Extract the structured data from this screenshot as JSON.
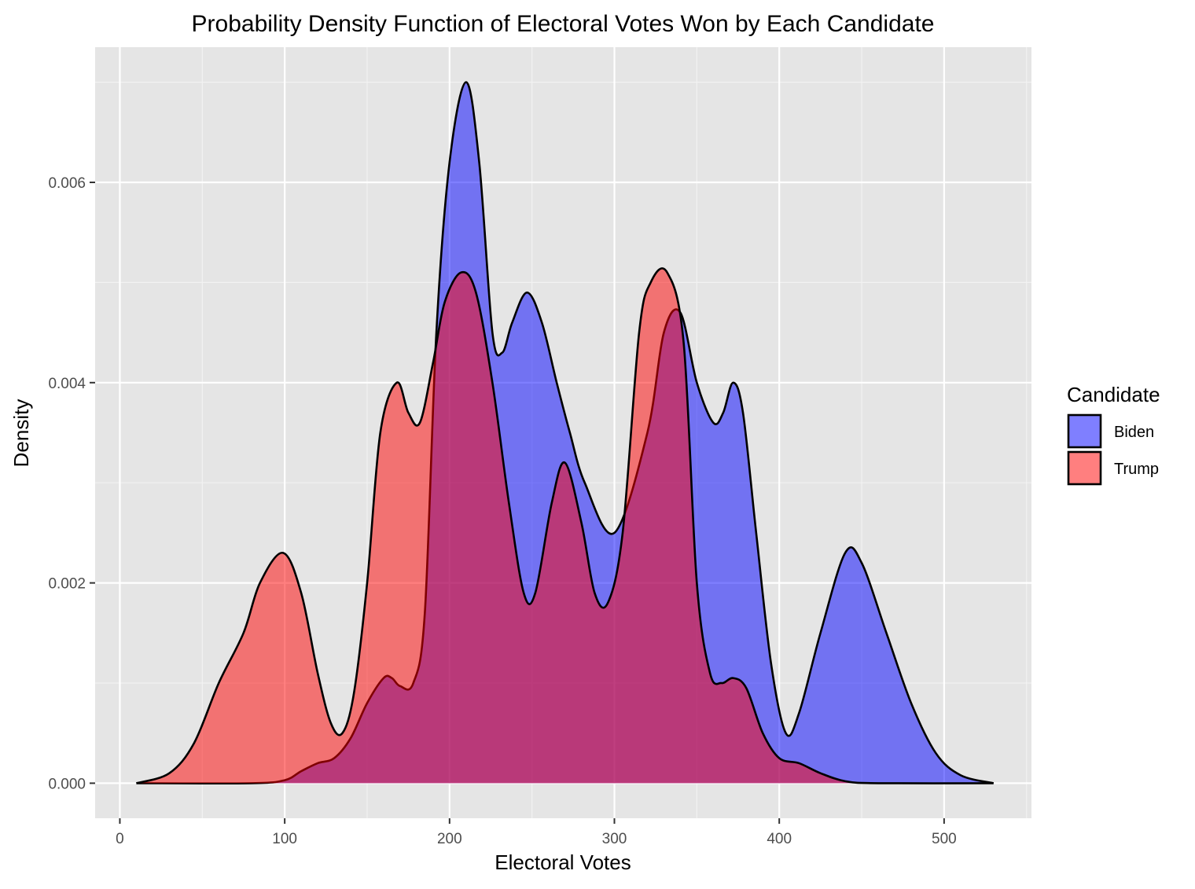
{
  "chart_data": {
    "type": "area",
    "title": "Probability Density Function of Electoral Votes Won by Each Candidate",
    "xlabel": "Electoral Votes",
    "ylabel": "Density",
    "xlim": [
      -15,
      553
    ],
    "ylim": [
      -0.00035,
      0.00735
    ],
    "x_ticks": [
      0,
      100,
      200,
      300,
      400,
      500
    ],
    "x_tick_labels": [
      "0",
      "100",
      "200",
      "300",
      "400",
      "500"
    ],
    "y_ticks": [
      0,
      0.002,
      0.004,
      0.006
    ],
    "y_tick_labels": [
      "0.000",
      "0.002",
      "0.004",
      "0.006"
    ],
    "grid": true,
    "legend": {
      "title": "Candidate",
      "position": "right",
      "entries": [
        "Biden",
        "Trump"
      ]
    },
    "series": [
      {
        "name": "Biden",
        "color": "#0000FF",
        "opacity": 0.5,
        "points": [
          [
            10,
            0
          ],
          [
            80,
            0
          ],
          [
            100,
            3e-05
          ],
          [
            110,
            0.00012
          ],
          [
            120,
            0.0002
          ],
          [
            130,
            0.00025
          ],
          [
            140,
            0.00045
          ],
          [
            150,
            0.0008
          ],
          [
            160,
            0.00105
          ],
          [
            165,
            0.00105
          ],
          [
            170,
            0.00097
          ],
          [
            178,
            0.001
          ],
          [
            185,
            0.0017
          ],
          [
            192,
            0.0045
          ],
          [
            200,
            0.0062
          ],
          [
            210,
            0.007
          ],
          [
            218,
            0.0062
          ],
          [
            226,
            0.0045
          ],
          [
            232,
            0.0043
          ],
          [
            238,
            0.0046
          ],
          [
            247,
            0.0049
          ],
          [
            256,
            0.0046
          ],
          [
            265,
            0.004
          ],
          [
            273,
            0.0035
          ],
          [
            282,
            0.003
          ],
          [
            300,
            0.0025
          ],
          [
            320,
            0.0035
          ],
          [
            330,
            0.0045
          ],
          [
            340,
            0.0047
          ],
          [
            350,
            0.004
          ],
          [
            360,
            0.0036
          ],
          [
            366,
            0.0037
          ],
          [
            372,
            0.004
          ],
          [
            378,
            0.0037
          ],
          [
            386,
            0.0025
          ],
          [
            395,
            0.0012
          ],
          [
            404,
            0.0005
          ],
          [
            412,
            0.0007
          ],
          [
            425,
            0.0015
          ],
          [
            440,
            0.0023
          ],
          [
            450,
            0.0022
          ],
          [
            465,
            0.0015
          ],
          [
            480,
            0.0008
          ],
          [
            495,
            0.0003
          ],
          [
            510,
            8e-05
          ],
          [
            530,
            0
          ]
        ]
      },
      {
        "name": "Trump",
        "color": "#FF0000",
        "opacity": 0.5,
        "points": [
          [
            10,
            0
          ],
          [
            30,
            0.0001
          ],
          [
            45,
            0.0004
          ],
          [
            60,
            0.001
          ],
          [
            75,
            0.0015
          ],
          [
            85,
            0.002
          ],
          [
            99,
            0.0023
          ],
          [
            110,
            0.0019
          ],
          [
            120,
            0.0011
          ],
          [
            128,
            0.0006
          ],
          [
            135,
            0.0005
          ],
          [
            142,
            0.0009
          ],
          [
            150,
            0.002
          ],
          [
            158,
            0.0035
          ],
          [
            168,
            0.004
          ],
          [
            175,
            0.0037
          ],
          [
            182,
            0.0036
          ],
          [
            190,
            0.0042
          ],
          [
            197,
            0.0048
          ],
          [
            207,
            0.0051
          ],
          [
            216,
            0.0049
          ],
          [
            226,
            0.004
          ],
          [
            236,
            0.0028
          ],
          [
            245,
            0.0019
          ],
          [
            252,
            0.0019
          ],
          [
            262,
            0.0028
          ],
          [
            270,
            0.0032
          ],
          [
            280,
            0.0026
          ],
          [
            288,
            0.0019
          ],
          [
            296,
            0.0018
          ],
          [
            305,
            0.0025
          ],
          [
            315,
            0.0045
          ],
          [
            322,
            0.005
          ],
          [
            332,
            0.0051
          ],
          [
            342,
            0.0044
          ],
          [
            350,
            0.002
          ],
          [
            358,
            0.0011
          ],
          [
            365,
            0.001
          ],
          [
            372,
            0.00105
          ],
          [
            380,
            0.00095
          ],
          [
            390,
            0.0005
          ],
          [
            400,
            0.00025
          ],
          [
            412,
            0.0002
          ],
          [
            425,
            0.0001
          ],
          [
            440,
            2e-05
          ],
          [
            460,
            0
          ],
          [
            530,
            0
          ]
        ]
      }
    ]
  }
}
